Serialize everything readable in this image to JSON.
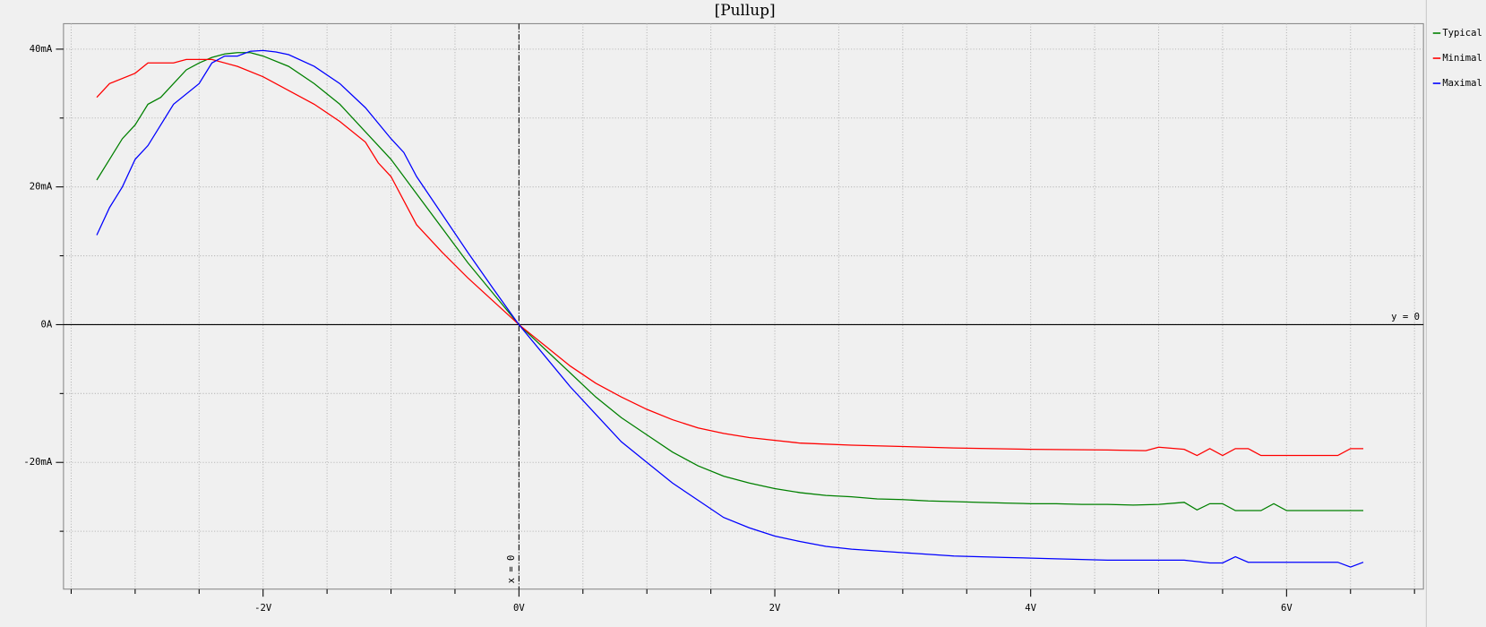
{
  "chart_data": {
    "type": "line",
    "title": "[Pullup]",
    "xlim": [
      -3.56,
      7.07
    ],
    "ylim": [
      -38.4,
      43.7
    ],
    "xticks": [
      {
        "value": -2,
        "label": "-2V"
      },
      {
        "value": 0,
        "label": "0V"
      },
      {
        "value": 2,
        "label": "2V"
      },
      {
        "value": 4,
        "label": "4V"
      },
      {
        "value": 6,
        "label": "6V"
      }
    ],
    "yticks": [
      {
        "value": -20,
        "label": "-20mA"
      },
      {
        "value": 0,
        "label": "0A"
      },
      {
        "value": 20,
        "label": "20mA"
      },
      {
        "value": 40,
        "label": "40mA"
      }
    ],
    "minor_xticks": [
      -3.5,
      -3,
      -2.5,
      -1.5,
      -1,
      -0.5,
      0.5,
      1,
      1.5,
      2.5,
      3,
      3.5,
      4.5,
      5,
      5.5,
      6.5,
      7
    ],
    "minor_yticks": [
      -30,
      -10,
      10,
      30
    ],
    "grid": true,
    "legend": "right",
    "annotations": [
      {
        "text": "y = 0",
        "axis": "y",
        "value": 0
      },
      {
        "text": "x = 0",
        "axis": "x",
        "value": 0
      }
    ],
    "series": [
      {
        "name": "Typical",
        "color": "#008000",
        "x": [
          -3.3,
          -3.2,
          -3.1,
          -3.0,
          -2.9,
          -2.8,
          -2.7,
          -2.6,
          -2.5,
          -2.4,
          -2.3,
          -2.2,
          -2.1,
          -2.0,
          -1.8,
          -1.6,
          -1.4,
          -1.2,
          -1.0,
          -0.8,
          -0.6,
          -0.4,
          -0.2,
          0,
          0.2,
          0.4,
          0.6,
          0.8,
          1.0,
          1.2,
          1.4,
          1.6,
          1.8,
          2.0,
          2.2,
          2.4,
          2.6,
          2.8,
          3.0,
          3.2,
          3.4,
          3.6,
          3.8,
          4.0,
          4.2,
          4.4,
          4.6,
          4.8,
          5.0,
          5.2,
          5.3,
          5.4,
          5.5,
          5.6,
          5.8,
          5.9,
          6.0,
          6.2,
          6.4,
          6.6
        ],
        "values": [
          21,
          24,
          27,
          29,
          32,
          33,
          35,
          37,
          38,
          38.8,
          39.3,
          39.5,
          39.5,
          39,
          37.5,
          35,
          32,
          28,
          24,
          19,
          14,
          9,
          4.5,
          0,
          -3.5,
          -7,
          -10.5,
          -13.5,
          -16,
          -18.5,
          -20.5,
          -22,
          -23,
          -23.8,
          -24.4,
          -24.8,
          -25,
          -25.3,
          -25.4,
          -25.6,
          -25.7,
          -25.8,
          -25.9,
          -26,
          -26,
          -26.1,
          -26.1,
          -26.2,
          -26.1,
          -25.8,
          -26.9,
          -26,
          -26,
          -27,
          -27,
          -26,
          -27,
          -27,
          -27,
          -27
        ]
      },
      {
        "name": "Minimal",
        "color": "#ff0000",
        "x": [
          -3.3,
          -3.2,
          -3.0,
          -2.9,
          -2.7,
          -2.6,
          -2.4,
          -2.2,
          -2.0,
          -1.8,
          -1.6,
          -1.4,
          -1.2,
          -1.1,
          -1.0,
          -0.9,
          -0.8,
          -0.6,
          -0.4,
          -0.2,
          0,
          0.2,
          0.4,
          0.6,
          0.8,
          1.0,
          1.2,
          1.4,
          1.6,
          1.8,
          2.0,
          2.2,
          2.6,
          3.0,
          3.4,
          4.0,
          4.6,
          4.9,
          5.0,
          5.2,
          5.3,
          5.4,
          5.5,
          5.6,
          5.7,
          5.8,
          6.4,
          6.5,
          6.6
        ],
        "values": [
          33,
          35,
          36.5,
          38,
          38,
          38.5,
          38.5,
          37.5,
          36,
          34,
          32,
          29.5,
          26.5,
          23.5,
          21.5,
          18,
          14.5,
          10.5,
          6.8,
          3.4,
          0,
          -3,
          -6,
          -8.5,
          -10.5,
          -12.3,
          -13.8,
          -15,
          -15.8,
          -16.4,
          -16.8,
          -17.2,
          -17.5,
          -17.7,
          -17.9,
          -18.1,
          -18.2,
          -18.3,
          -17.8,
          -18.1,
          -19,
          -18,
          -19,
          -18,
          -18,
          -19,
          -19,
          -18,
          -18
        ]
      },
      {
        "name": "Maximal",
        "color": "#0000ff",
        "x": [
          -3.3,
          -3.2,
          -3.1,
          -3.0,
          -2.9,
          -2.7,
          -2.5,
          -2.4,
          -2.3,
          -2.2,
          -2.1,
          -2.0,
          -1.9,
          -1.8,
          -1.6,
          -1.4,
          -1.2,
          -1.0,
          -0.9,
          -0.8,
          -0.6,
          -0.4,
          -0.2,
          0,
          0.2,
          0.4,
          0.6,
          0.8,
          1.0,
          1.2,
          1.4,
          1.6,
          1.8,
          2.0,
          2.2,
          2.4,
          2.6,
          3.0,
          3.4,
          3.8,
          4.2,
          4.6,
          5.0,
          5.2,
          5.4,
          5.5,
          5.6,
          5.7,
          6.0,
          6.4,
          6.5,
          6.6
        ],
        "values": [
          13,
          17,
          20,
          24,
          26,
          32,
          35,
          38,
          39,
          39,
          39.7,
          39.8,
          39.6,
          39.2,
          37.5,
          35,
          31.5,
          27,
          25,
          21.5,
          16,
          10.5,
          5.2,
          0,
          -4.5,
          -9,
          -13,
          -17,
          -20,
          -23,
          -25.5,
          -28,
          -29.5,
          -30.7,
          -31.5,
          -32.2,
          -32.6,
          -33.1,
          -33.6,
          -33.8,
          -34,
          -34.2,
          -34.2,
          -34.2,
          -34.6,
          -34.6,
          -33.7,
          -34.5,
          -34.5,
          -34.5,
          -35.2,
          -34.5
        ]
      }
    ]
  }
}
